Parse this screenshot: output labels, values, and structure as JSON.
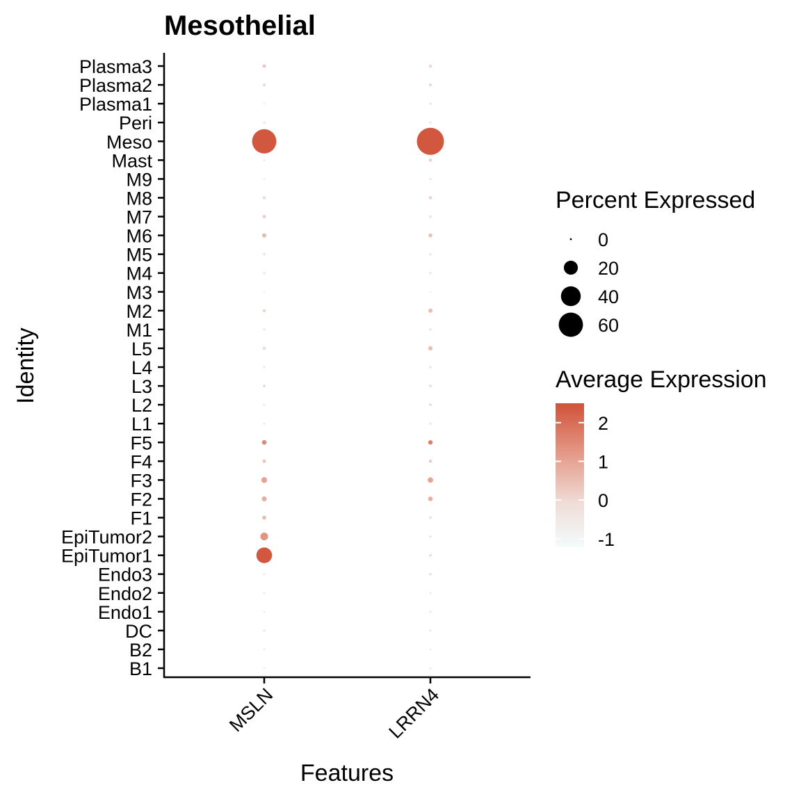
{
  "chart_data": {
    "type": "dotplot",
    "title": "Mesothelial",
    "xlabel": "Features",
    "ylabel": "Identity",
    "features": [
      "MSLN",
      "LRRN4"
    ],
    "identities": [
      "B1",
      "B2",
      "DC",
      "Endo1",
      "Endo2",
      "Endo3",
      "EpiTumor1",
      "EpiTumor2",
      "F1",
      "F2",
      "F3",
      "F4",
      "F5",
      "L1",
      "L2",
      "L3",
      "L4",
      "L5",
      "M1",
      "M2",
      "M3",
      "M4",
      "M5",
      "M6",
      "M7",
      "M8",
      "M9",
      "Mast",
      "Meso",
      "Peri",
      "Plasma1",
      "Plasma2",
      "Plasma3"
    ],
    "points": [
      {
        "identity": "B1",
        "feature": "MSLN",
        "pct": 0.2,
        "avg": -0.4
      },
      {
        "identity": "B2",
        "feature": "MSLN",
        "pct": 0.3,
        "avg": -0.4
      },
      {
        "identity": "DC",
        "feature": "MSLN",
        "pct": 0.5,
        "avg": -0.3
      },
      {
        "identity": "Endo1",
        "feature": "MSLN",
        "pct": 0.3,
        "avg": -0.4
      },
      {
        "identity": "Endo2",
        "feature": "MSLN",
        "pct": 0.4,
        "avg": -0.4
      },
      {
        "identity": "Endo3",
        "feature": "MSLN",
        "pct": 0.4,
        "avg": -0.4
      },
      {
        "identity": "EpiTumor1",
        "feature": "MSLN",
        "pct": 25,
        "avg": 2.4
      },
      {
        "identity": "EpiTumor2",
        "feature": "MSLN",
        "pct": 6,
        "avg": 1.3
      },
      {
        "identity": "F1",
        "feature": "MSLN",
        "pct": 1.5,
        "avg": 0.6
      },
      {
        "identity": "F2",
        "feature": "MSLN",
        "pct": 2.5,
        "avg": 0.8
      },
      {
        "identity": "F3",
        "feature": "MSLN",
        "pct": 3.5,
        "avg": 1.0
      },
      {
        "identity": "F4",
        "feature": "MSLN",
        "pct": 1.2,
        "avg": 0.4
      },
      {
        "identity": "F5",
        "feature": "MSLN",
        "pct": 2.2,
        "avg": 1.5
      },
      {
        "identity": "L1",
        "feature": "MSLN",
        "pct": 0.4,
        "avg": -0.4
      },
      {
        "identity": "L2",
        "feature": "MSLN",
        "pct": 0.4,
        "avg": -0.3
      },
      {
        "identity": "L3",
        "feature": "MSLN",
        "pct": 0.7,
        "avg": 0.0
      },
      {
        "identity": "L4",
        "feature": "MSLN",
        "pct": 0.4,
        "avg": -0.4
      },
      {
        "identity": "L5",
        "feature": "MSLN",
        "pct": 0.9,
        "avg": 0.0
      },
      {
        "identity": "M1",
        "feature": "MSLN",
        "pct": 0.5,
        "avg": -0.3
      },
      {
        "identity": "M2",
        "feature": "MSLN",
        "pct": 1.0,
        "avg": 0.1
      },
      {
        "identity": "M3",
        "feature": "MSLN",
        "pct": 0.1,
        "avg": -0.7
      },
      {
        "identity": "M4",
        "feature": "MSLN",
        "pct": 0.5,
        "avg": -0.3
      },
      {
        "identity": "M5",
        "feature": "MSLN",
        "pct": 0.6,
        "avg": -0.2
      },
      {
        "identity": "M6",
        "feature": "MSLN",
        "pct": 1.8,
        "avg": 0.6
      },
      {
        "identity": "M7",
        "feature": "MSLN",
        "pct": 1.2,
        "avg": 0.2
      },
      {
        "identity": "M8",
        "feature": "MSLN",
        "pct": 0.9,
        "avg": 0.0
      },
      {
        "identity": "M9",
        "feature": "MSLN",
        "pct": 0.3,
        "avg": -0.5
      },
      {
        "identity": "Mast",
        "feature": "MSLN",
        "pct": 0.4,
        "avg": -0.4
      },
      {
        "identity": "Meso",
        "feature": "MSLN",
        "pct": 60,
        "avg": 2.4
      },
      {
        "identity": "Peri",
        "feature": "MSLN",
        "pct": 0.5,
        "avg": -0.4
      },
      {
        "identity": "Plasma1",
        "feature": "MSLN",
        "pct": 0.3,
        "avg": -0.5
      },
      {
        "identity": "Plasma2",
        "feature": "MSLN",
        "pct": 0.8,
        "avg": 0.0
      },
      {
        "identity": "Plasma3",
        "feature": "MSLN",
        "pct": 1.2,
        "avg": 0.3
      },
      {
        "identity": "B1",
        "feature": "LRRN4",
        "pct": 0.4,
        "avg": -0.3
      },
      {
        "identity": "B2",
        "feature": "LRRN4",
        "pct": 0.3,
        "avg": -0.4
      },
      {
        "identity": "DC",
        "feature": "LRRN4",
        "pct": 0.4,
        "avg": -0.3
      },
      {
        "identity": "Endo1",
        "feature": "LRRN4",
        "pct": 0.4,
        "avg": -0.4
      },
      {
        "identity": "Endo2",
        "feature": "LRRN4",
        "pct": 0.4,
        "avg": -0.4
      },
      {
        "identity": "Endo3",
        "feature": "LRRN4",
        "pct": 0.7,
        "avg": -0.2
      },
      {
        "identity": "EpiTumor1",
        "feature": "LRRN4",
        "pct": 0.8,
        "avg": -0.1
      },
      {
        "identity": "EpiTumor2",
        "feature": "LRRN4",
        "pct": 0.5,
        "avg": -0.3
      },
      {
        "identity": "F1",
        "feature": "LRRN4",
        "pct": 0.7,
        "avg": -0.1
      },
      {
        "identity": "F2",
        "feature": "LRRN4",
        "pct": 2.2,
        "avg": 0.8
      },
      {
        "identity": "F3",
        "feature": "LRRN4",
        "pct": 3.0,
        "avg": 1.0
      },
      {
        "identity": "F4",
        "feature": "LRRN4",
        "pct": 1.0,
        "avg": 0.3
      },
      {
        "identity": "F5",
        "feature": "LRRN4",
        "pct": 2.0,
        "avg": 1.7
      },
      {
        "identity": "L1",
        "feature": "LRRN4",
        "pct": 0.5,
        "avg": -0.3
      },
      {
        "identity": "L2",
        "feature": "LRRN4",
        "pct": 0.8,
        "avg": -0.1
      },
      {
        "identity": "L3",
        "feature": "LRRN4",
        "pct": 0.8,
        "avg": -0.1
      },
      {
        "identity": "L4",
        "feature": "LRRN4",
        "pct": 0.6,
        "avg": -0.2
      },
      {
        "identity": "L5",
        "feature": "LRRN4",
        "pct": 2.0,
        "avg": 0.5
      },
      {
        "identity": "M1",
        "feature": "LRRN4",
        "pct": 0.6,
        "avg": -0.2
      },
      {
        "identity": "M2",
        "feature": "LRRN4",
        "pct": 1.8,
        "avg": 0.5
      },
      {
        "identity": "M3",
        "feature": "LRRN4",
        "pct": 0.1,
        "avg": -0.7
      },
      {
        "identity": "M4",
        "feature": "LRRN4",
        "pct": 0.5,
        "avg": -0.3
      },
      {
        "identity": "M5",
        "feature": "LRRN4",
        "pct": 0.5,
        "avg": -0.3
      },
      {
        "identity": "M6",
        "feature": "LRRN4",
        "pct": 1.5,
        "avg": 0.5
      },
      {
        "identity": "M7",
        "feature": "LRRN4",
        "pct": 0.6,
        "avg": -0.2
      },
      {
        "identity": "M8",
        "feature": "LRRN4",
        "pct": 1.0,
        "avg": 0.2
      },
      {
        "identity": "M9",
        "feature": "LRRN4",
        "pct": 0.5,
        "avg": -0.3
      },
      {
        "identity": "Mast",
        "feature": "LRRN4",
        "pct": 1.0,
        "avg": 0.2
      },
      {
        "identity": "Meso",
        "feature": "LRRN4",
        "pct": 75,
        "avg": 2.4
      },
      {
        "identity": "Peri",
        "feature": "LRRN4",
        "pct": 0.5,
        "avg": -0.3
      },
      {
        "identity": "Plasma1",
        "feature": "LRRN4",
        "pct": 0.5,
        "avg": -0.3
      },
      {
        "identity": "Plasma2",
        "feature": "LRRN4",
        "pct": 0.8,
        "avg": 0.0
      },
      {
        "identity": "Plasma3",
        "feature": "LRRN4",
        "pct": 0.9,
        "avg": 0.1
      }
    ],
    "size_legend": {
      "title": "Percent Expressed",
      "breaks": [
        0,
        20,
        40,
        60
      ],
      "labels": [
        "0",
        "20",
        "40",
        "60"
      ]
    },
    "color_legend": {
      "title": "Average Expression",
      "breaks": [
        2,
        1,
        0,
        -1
      ],
      "labels": [
        "2",
        "1",
        "0",
        "-1"
      ],
      "limits": [
        -1.2,
        2.5
      ],
      "low_color": "#f2fbfb",
      "high_color": "#d15139"
    },
    "grid": false
  }
}
